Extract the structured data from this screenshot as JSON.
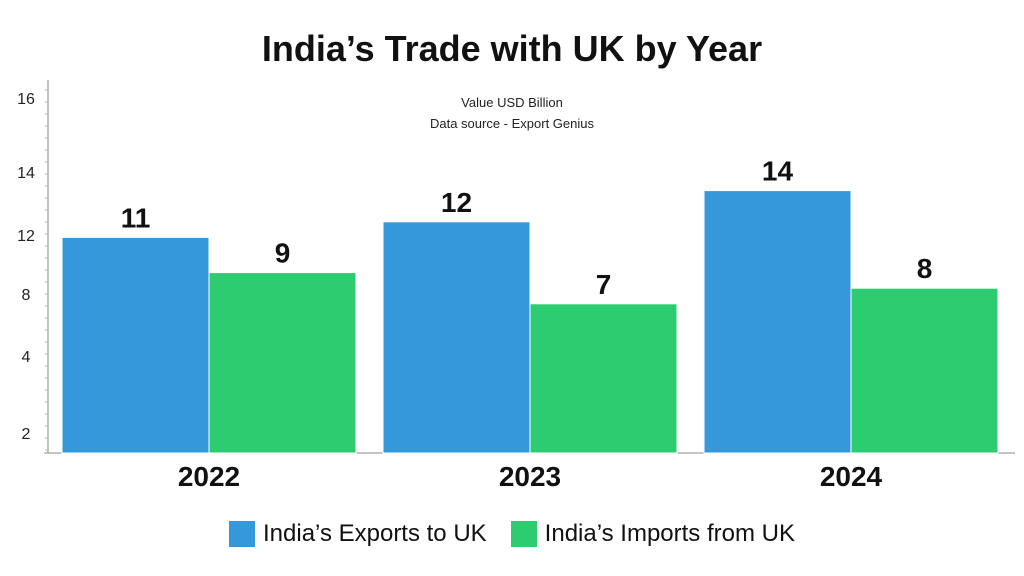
{
  "colors": {
    "exports": "#3498db",
    "imports": "#2ecc71",
    "text": "#111111",
    "axis": "#888888"
  },
  "chart_data": {
    "type": "bar",
    "title": "India’s Trade with UK by Year",
    "subtitle_lines": [
      "Value USD Billion",
      "Data source - Export Genius"
    ],
    "categories": [
      "2022",
      "2023",
      "2024"
    ],
    "series": [
      {
        "name": "India’s Exports to UK",
        "values": [
          11,
          12,
          14
        ]
      },
      {
        "name": "India’s Imports from UK",
        "values": [
          9,
          7,
          8
        ]
      }
    ],
    "y_tick_labels": [
      "2",
      "4",
      "8",
      "12",
      "14",
      "16"
    ],
    "legend_position": "bottom-center",
    "grid": false
  }
}
